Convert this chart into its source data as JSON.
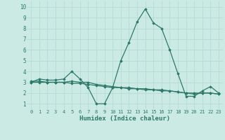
{
  "line1": [
    3.0,
    3.3,
    3.2,
    3.2,
    3.3,
    4.0,
    3.3,
    2.5,
    1.0,
    1.0,
    2.5,
    5.0,
    6.7,
    8.6,
    9.8,
    8.5,
    8.0,
    6.0,
    3.8,
    1.7,
    1.7,
    2.2,
    2.6,
    2.0
  ],
  "line2": [
    3.1,
    3.1,
    3.0,
    3.0,
    3.0,
    3.1,
    3.0,
    3.0,
    2.8,
    2.7,
    2.6,
    2.5,
    2.5,
    2.4,
    2.4,
    2.3,
    2.3,
    2.2,
    2.1,
    2.0,
    1.9,
    2.0,
    2.0,
    1.9
  ],
  "line3": [
    3.0,
    3.0,
    3.0,
    3.0,
    3.0,
    2.9,
    2.9,
    2.8,
    2.7,
    2.6,
    2.5,
    2.5,
    2.4,
    2.4,
    2.3,
    2.3,
    2.2,
    2.2,
    2.1,
    2.0,
    2.0,
    2.0,
    2.0,
    1.9
  ],
  "x": [
    0,
    1,
    2,
    3,
    4,
    5,
    6,
    7,
    8,
    9,
    10,
    11,
    12,
    13,
    14,
    15,
    16,
    17,
    18,
    19,
    20,
    21,
    22,
    23
  ],
  "line_color": "#2d7a6a",
  "xlabel": "Humidex (Indice chaleur)",
  "ylim": [
    0.5,
    10.5
  ],
  "xlim": [
    -0.5,
    23.5
  ],
  "yticks": [
    1,
    2,
    3,
    4,
    5,
    6,
    7,
    8,
    9,
    10
  ],
  "xtick_labels": [
    "0",
    "1",
    "2",
    "3",
    "4",
    "5",
    "6",
    "7",
    "8",
    "9",
    "10",
    "11",
    "12",
    "13",
    "14",
    "15",
    "16",
    "17",
    "18",
    "19",
    "20",
    "21",
    "22",
    "23"
  ],
  "grid_color": "#b8ddd6",
  "bg_color": "#cceae4",
  "tick_color": "#2d7a6a"
}
